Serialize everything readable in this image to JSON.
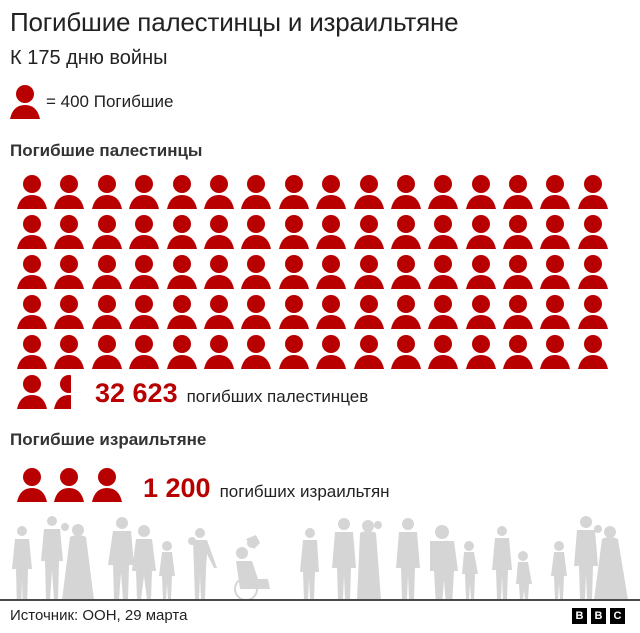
{
  "header": {
    "title": "Погибшие палестинцы и израильтяне",
    "subtitle": "К 175 дню войны"
  },
  "legend": {
    "icon": "person-icon",
    "label": "= 400 Погибшие",
    "unit_value": 400
  },
  "colors": {
    "accent": "#b80000",
    "silhouette": "#d5d5d5",
    "text": "#222222",
    "divider": "#4a4a4a"
  },
  "palestinians": {
    "section_title": "Погибшие палестинцы",
    "value_label": "32 623",
    "caption": "погибших палестинцев",
    "icons_full": 81,
    "icons_partial": 0.56,
    "icons_per_row": 16
  },
  "israelis": {
    "section_title": "Погибшие израильтяне",
    "value_label": "1 200",
    "caption": "погибших израильтян",
    "icons_full": 3,
    "icons_partial": 0
  },
  "footer": {
    "source": "Источник: ООН, 29 марта",
    "logo_letters": [
      "B",
      "B",
      "C"
    ]
  },
  "chart_data": {
    "type": "pictogram",
    "title": "Погибшие палестинцы и израильтяне",
    "subtitle": "К 175 дню войны",
    "unit": "1 icon = 400 Погибшие",
    "categories": [
      "Погибшие палестинцы",
      "Погибшие израильтяне"
    ],
    "values": [
      32623,
      1200
    ],
    "icon_counts": [
      81.56,
      3
    ],
    "value_labels": [
      "32 623 погибших палестинцев",
      "1 200 погибших израильтян"
    ],
    "source": "Источник: ООН, 29 марта"
  }
}
